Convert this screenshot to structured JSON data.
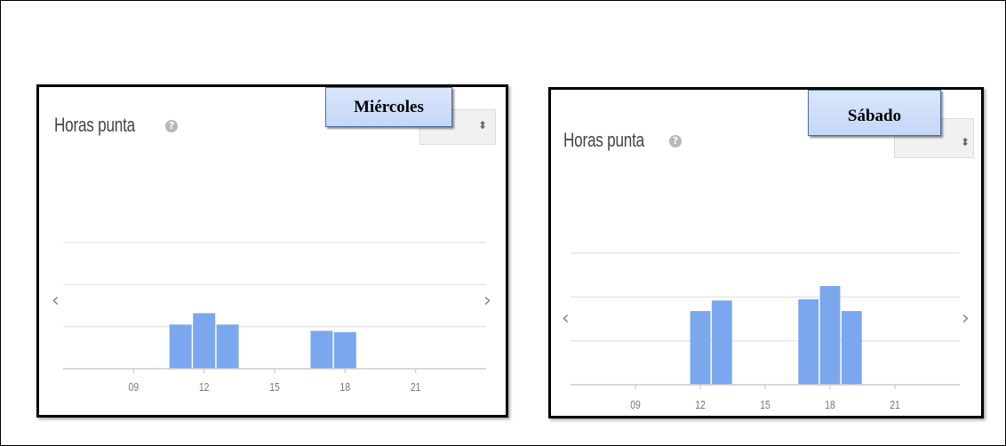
{
  "panels": [
    {
      "title": "Horas punta",
      "day_label": "Miércoles",
      "select_arrow": "⬍",
      "help_icon": "?",
      "nav_prev": "‹",
      "nav_next": "›"
    },
    {
      "title": "Horas punta",
      "day_label": "Sábado",
      "select_arrow": "⬍",
      "help_icon": "?",
      "nav_prev": "‹",
      "nav_next": "›"
    }
  ],
  "colors": {
    "bar": "#7aa7ee",
    "grid": "#e6e6e6",
    "axis": "#cccccc",
    "label_bg": "#c9dbf8"
  },
  "chart_data": [
    {
      "type": "bar",
      "title": "",
      "xlabel": "",
      "ylabel": "",
      "x_ticks": [
        "09",
        "12",
        "15",
        "18",
        "21"
      ],
      "x_tick_hours": [
        9,
        12,
        15,
        18,
        21
      ],
      "xlim": [
        6,
        24
      ],
      "ylim": [
        0,
        100
      ],
      "grid": true,
      "hours": [
        11,
        12,
        13,
        17,
        18
      ],
      "values": [
        35,
        44,
        35,
        30,
        29
      ]
    },
    {
      "type": "bar",
      "title": "",
      "xlabel": "",
      "ylabel": "",
      "x_ticks": [
        "09",
        "12",
        "15",
        "18",
        "21"
      ],
      "x_tick_hours": [
        9,
        12,
        15,
        18,
        21
      ],
      "xlim": [
        6,
        24
      ],
      "ylim": [
        0,
        100
      ],
      "grid": true,
      "hours": [
        12,
        13,
        17,
        18,
        19
      ],
      "values": [
        56,
        64,
        65,
        75,
        56
      ]
    }
  ]
}
